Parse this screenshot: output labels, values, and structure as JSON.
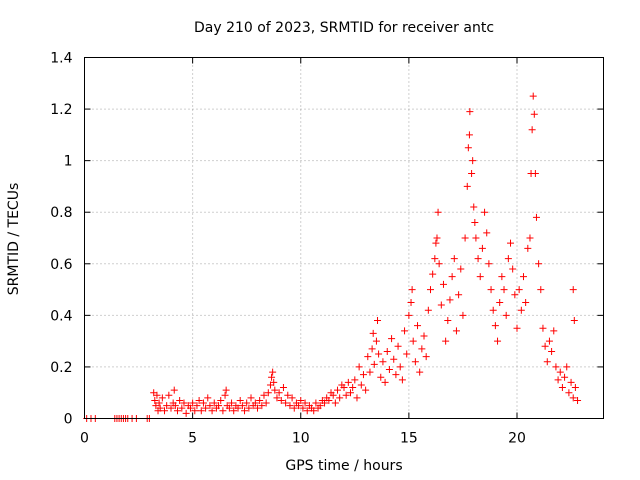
{
  "chart_data": {
    "type": "scatter",
    "title": "Day 210 of 2023, SRMTID for receiver antc",
    "xlabel": "GPS time / hours",
    "ylabel": "SRMTID / TECUs",
    "xlim": [
      0,
      24
    ],
    "ylim": [
      0,
      1.4
    ],
    "xticks": [
      0,
      5,
      10,
      15,
      20
    ],
    "xtick_labels": [
      "0",
      "5",
      "10",
      "15",
      "20"
    ],
    "yticks": [
      0,
      0.2,
      0.4,
      0.6,
      0.8,
      1.0,
      1.2,
      1.4
    ],
    "ytick_labels": [
      "0",
      "0.2",
      "0.4",
      "0.6",
      "0.8",
      "1",
      "1.2",
      "1.4"
    ],
    "grid": true,
    "marker": "+",
    "color": "#ff0000",
    "series": [
      {
        "name": "SRMTID",
        "points": [
          [
            0.1,
            0.0
          ],
          [
            0.3,
            0.0
          ],
          [
            0.5,
            0.0
          ],
          [
            1.4,
            0.0
          ],
          [
            1.5,
            0.0
          ],
          [
            1.6,
            0.0
          ],
          [
            1.7,
            0.0
          ],
          [
            1.8,
            0.0
          ],
          [
            1.9,
            0.0
          ],
          [
            2.0,
            0.0
          ],
          [
            2.2,
            0.0
          ],
          [
            2.4,
            0.0
          ],
          [
            2.9,
            0.0
          ],
          [
            3.0,
            0.0
          ],
          [
            3.2,
            0.1
          ],
          [
            3.25,
            0.07
          ],
          [
            3.3,
            0.05
          ],
          [
            3.35,
            0.09
          ],
          [
            3.4,
            0.03
          ],
          [
            3.45,
            0.06
          ],
          [
            3.5,
            0.04
          ],
          [
            3.6,
            0.08
          ],
          [
            3.7,
            0.03
          ],
          [
            3.8,
            0.05
          ],
          [
            3.9,
            0.09
          ],
          [
            4.0,
            0.04
          ],
          [
            4.1,
            0.06
          ],
          [
            4.15,
            0.11
          ],
          [
            4.2,
            0.05
          ],
          [
            4.3,
            0.03
          ],
          [
            4.4,
            0.07
          ],
          [
            4.5,
            0.04
          ],
          [
            4.6,
            0.06
          ],
          [
            4.7,
            0.02
          ],
          [
            4.8,
            0.05
          ],
          [
            4.9,
            0.04
          ],
          [
            5.0,
            0.06
          ],
          [
            5.1,
            0.03
          ],
          [
            5.2,
            0.05
          ],
          [
            5.3,
            0.07
          ],
          [
            5.4,
            0.03
          ],
          [
            5.5,
            0.06
          ],
          [
            5.6,
            0.04
          ],
          [
            5.7,
            0.08
          ],
          [
            5.8,
            0.05
          ],
          [
            5.9,
            0.03
          ],
          [
            6.0,
            0.06
          ],
          [
            6.1,
            0.04
          ],
          [
            6.2,
            0.05
          ],
          [
            6.3,
            0.07
          ],
          [
            6.4,
            0.03
          ],
          [
            6.5,
            0.09
          ],
          [
            6.55,
            0.11
          ],
          [
            6.6,
            0.05
          ],
          [
            6.7,
            0.04
          ],
          [
            6.8,
            0.06
          ],
          [
            6.9,
            0.03
          ],
          [
            7.0,
            0.05
          ],
          [
            7.1,
            0.04
          ],
          [
            7.2,
            0.07
          ],
          [
            7.3,
            0.05
          ],
          [
            7.4,
            0.03
          ],
          [
            7.5,
            0.06
          ],
          [
            7.6,
            0.04
          ],
          [
            7.7,
            0.08
          ],
          [
            7.8,
            0.05
          ],
          [
            7.9,
            0.06
          ],
          [
            8.0,
            0.04
          ],
          [
            8.1,
            0.07
          ],
          [
            8.2,
            0.05
          ],
          [
            8.3,
            0.09
          ],
          [
            8.4,
            0.06
          ],
          [
            8.5,
            0.1
          ],
          [
            8.6,
            0.13
          ],
          [
            8.65,
            0.16
          ],
          [
            8.7,
            0.18
          ],
          [
            8.75,
            0.14
          ],
          [
            8.8,
            0.11
          ],
          [
            8.9,
            0.08
          ],
          [
            9.0,
            0.1
          ],
          [
            9.1,
            0.07
          ],
          [
            9.2,
            0.12
          ],
          [
            9.3,
            0.06
          ],
          [
            9.4,
            0.09
          ],
          [
            9.5,
            0.05
          ],
          [
            9.6,
            0.08
          ],
          [
            9.7,
            0.04
          ],
          [
            9.8,
            0.06
          ],
          [
            9.9,
            0.05
          ],
          [
            10.0,
            0.07
          ],
          [
            10.1,
            0.04
          ],
          [
            10.2,
            0.06
          ],
          [
            10.3,
            0.03
          ],
          [
            10.4,
            0.05
          ],
          [
            10.5,
            0.04
          ],
          [
            10.6,
            0.03
          ],
          [
            10.7,
            0.06
          ],
          [
            10.8,
            0.04
          ],
          [
            10.9,
            0.05
          ],
          [
            11.0,
            0.07
          ],
          [
            11.1,
            0.06
          ],
          [
            11.2,
            0.08
          ],
          [
            11.3,
            0.07
          ],
          [
            11.4,
            0.1
          ],
          [
            11.5,
            0.09
          ],
          [
            11.6,
            0.06
          ],
          [
            11.7,
            0.11
          ],
          [
            11.8,
            0.08
          ],
          [
            11.9,
            0.13
          ],
          [
            12.0,
            0.12
          ],
          [
            12.1,
            0.09
          ],
          [
            12.2,
            0.14
          ],
          [
            12.3,
            0.1
          ],
          [
            12.4,
            0.12
          ],
          [
            12.5,
            0.15
          ],
          [
            12.6,
            0.08
          ],
          [
            12.7,
            0.2
          ],
          [
            12.8,
            0.13
          ],
          [
            12.9,
            0.17
          ],
          [
            13.0,
            0.11
          ],
          [
            13.1,
            0.24
          ],
          [
            13.2,
            0.18
          ],
          [
            13.3,
            0.27
          ],
          [
            13.35,
            0.33
          ],
          [
            13.4,
            0.21
          ],
          [
            13.5,
            0.3
          ],
          [
            13.55,
            0.38
          ],
          [
            13.6,
            0.25
          ],
          [
            13.7,
            0.16
          ],
          [
            13.8,
            0.22
          ],
          [
            13.9,
            0.14
          ],
          [
            14.0,
            0.26
          ],
          [
            14.1,
            0.19
          ],
          [
            14.2,
            0.31
          ],
          [
            14.3,
            0.23
          ],
          [
            14.4,
            0.17
          ],
          [
            14.5,
            0.28
          ],
          [
            14.6,
            0.2
          ],
          [
            14.7,
            0.15
          ],
          [
            14.8,
            0.34
          ],
          [
            14.9,
            0.25
          ],
          [
            15.0,
            0.4
          ],
          [
            15.1,
            0.45
          ],
          [
            15.15,
            0.5
          ],
          [
            15.2,
            0.3
          ],
          [
            15.3,
            0.22
          ],
          [
            15.4,
            0.36
          ],
          [
            15.5,
            0.18
          ],
          [
            15.6,
            0.27
          ],
          [
            15.7,
            0.32
          ],
          [
            15.8,
            0.24
          ],
          [
            15.9,
            0.42
          ],
          [
            16.0,
            0.5
          ],
          [
            16.1,
            0.56
          ],
          [
            16.2,
            0.62
          ],
          [
            16.25,
            0.68
          ],
          [
            16.3,
            0.7
          ],
          [
            16.35,
            0.8
          ],
          [
            16.4,
            0.6
          ],
          [
            16.5,
            0.44
          ],
          [
            16.6,
            0.52
          ],
          [
            16.7,
            0.3
          ],
          [
            16.8,
            0.38
          ],
          [
            16.9,
            0.46
          ],
          [
            17.0,
            0.55
          ],
          [
            17.1,
            0.62
          ],
          [
            17.2,
            0.34
          ],
          [
            17.3,
            0.48
          ],
          [
            17.4,
            0.58
          ],
          [
            17.5,
            0.4
          ],
          [
            17.6,
            0.7
          ],
          [
            17.7,
            0.9
          ],
          [
            17.75,
            1.05
          ],
          [
            17.8,
            1.1
          ],
          [
            17.82,
            1.19
          ],
          [
            17.9,
            0.95
          ],
          [
            17.95,
            1.0
          ],
          [
            18.0,
            0.82
          ],
          [
            18.05,
            0.76
          ],
          [
            18.1,
            0.7
          ],
          [
            18.2,
            0.62
          ],
          [
            18.3,
            0.55
          ],
          [
            18.4,
            0.66
          ],
          [
            18.5,
            0.8
          ],
          [
            18.6,
            0.72
          ],
          [
            18.7,
            0.6
          ],
          [
            18.8,
            0.5
          ],
          [
            18.9,
            0.42
          ],
          [
            19.0,
            0.36
          ],
          [
            19.1,
            0.3
          ],
          [
            19.2,
            0.45
          ],
          [
            19.3,
            0.55
          ],
          [
            19.4,
            0.5
          ],
          [
            19.5,
            0.4
          ],
          [
            19.6,
            0.62
          ],
          [
            19.7,
            0.68
          ],
          [
            19.8,
            0.58
          ],
          [
            19.9,
            0.48
          ],
          [
            20.0,
            0.35
          ],
          [
            20.1,
            0.5
          ],
          [
            20.2,
            0.42
          ],
          [
            20.3,
            0.55
          ],
          [
            20.4,
            0.45
          ],
          [
            20.5,
            0.66
          ],
          [
            20.6,
            0.7
          ],
          [
            20.65,
            0.95
          ],
          [
            20.7,
            1.12
          ],
          [
            20.75,
            1.25
          ],
          [
            20.8,
            1.18
          ],
          [
            20.85,
            0.95
          ],
          [
            20.9,
            0.78
          ],
          [
            21.0,
            0.6
          ],
          [
            21.1,
            0.5
          ],
          [
            21.2,
            0.35
          ],
          [
            21.3,
            0.28
          ],
          [
            21.4,
            0.22
          ],
          [
            21.5,
            0.3
          ],
          [
            21.6,
            0.26
          ],
          [
            21.7,
            0.34
          ],
          [
            21.8,
            0.2
          ],
          [
            21.9,
            0.15
          ],
          [
            22.0,
            0.18
          ],
          [
            22.1,
            0.12
          ],
          [
            22.2,
            0.16
          ],
          [
            22.3,
            0.2
          ],
          [
            22.4,
            0.1
          ],
          [
            22.5,
            0.14
          ],
          [
            22.6,
            0.08
          ],
          [
            22.7,
            0.12
          ],
          [
            22.8,
            0.07
          ],
          [
            22.6,
            0.5
          ],
          [
            22.65,
            0.38
          ]
        ]
      }
    ]
  }
}
